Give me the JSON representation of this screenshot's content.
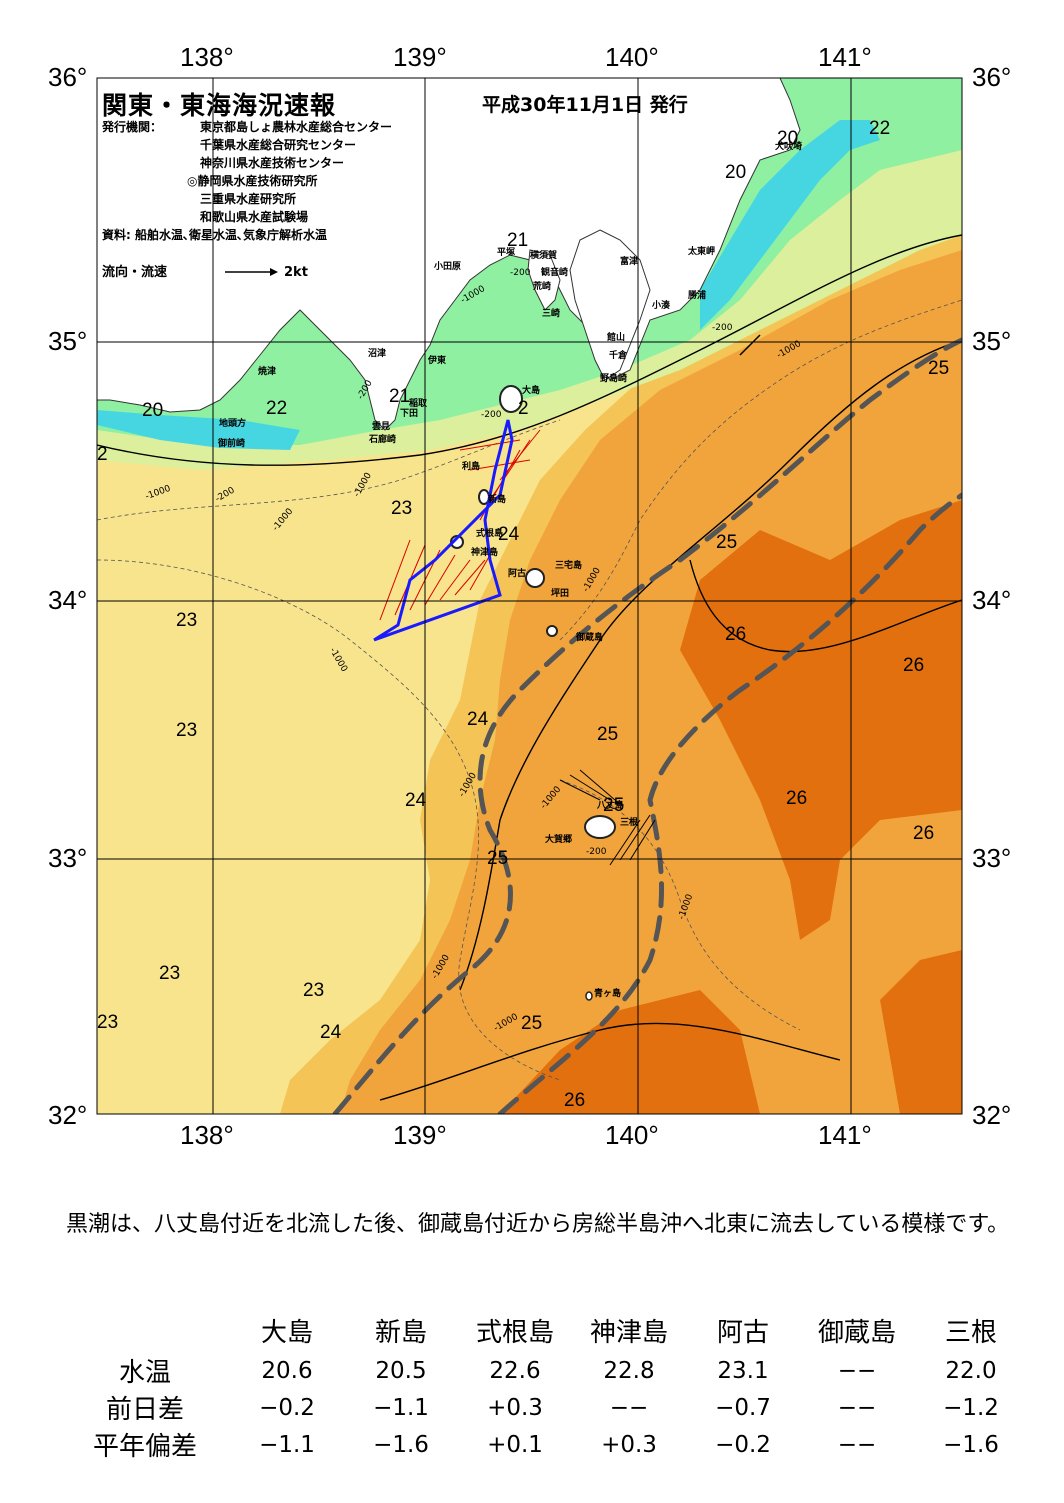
{
  "header": {
    "title": "関東・東海海況速報",
    "issue_date": "平成30年11月1日 発行",
    "issuer_label": "発行機関：",
    "issuers": [
      "東京都島しょ農林水産総合センター",
      "千葉県水産総合研究センター",
      "神奈川県水産技術センター",
      "◎静岡県水産技術研究所",
      "三重県水産研究所",
      "和歌山県水産試験場"
    ],
    "sources": "資料: 船舶水温､衛星水温､気象庁解析水温",
    "flow_legend_label": "流向・流速",
    "flow_legend_speed": "2kt"
  },
  "map": {
    "lon_labels": [
      "138°",
      "139°",
      "140°",
      "141°"
    ],
    "lat_labels": [
      "36°",
      "35°",
      "34°",
      "33°",
      "32°"
    ],
    "colors": {
      "sea_20": "#46d6e2",
      "sea_21": "#8ff0a2",
      "sea_22": "#dcef9c",
      "sea_23": "#f7e48c",
      "sea_24": "#f5c456",
      "sea_25": "#f1a43c",
      "sea_26": "#e2700f",
      "land": "#ffffff",
      "kuroshio_axis": "#555555",
      "ship_track": "#1a1aff",
      "ship_vectors": "#dd0000"
    },
    "place_names": [
      "犬吠埼",
      "富津",
      "太東岬",
      "勝浦",
      "小湊",
      "館山",
      "千倉",
      "野島崎",
      "横須賀",
      "観音崎",
      "平塚",
      "荒崎",
      "三崎",
      "小田原",
      "沼津",
      "伊東",
      "焼津",
      "地頭方",
      "御前崎",
      "稲取",
      "下田",
      "雲見",
      "石廊崎",
      "大島",
      "利島",
      "新島",
      "式根島",
      "神津島",
      "三宅島",
      "阿古",
      "坪田",
      "御蔵島",
      "八丈島",
      "三根",
      "大賀郷",
      "青ヶ島"
    ],
    "temperature_labels": [
      "20",
      "22",
      "20",
      "21",
      "20",
      "22",
      "21",
      "2",
      "2",
      "23",
      "24",
      "23",
      "25",
      "25",
      "26",
      "26",
      "23",
      "24",
      "25",
      "23",
      "24",
      "25",
      "26",
      "26",
      "25",
      "23",
      "23",
      "24",
      "25",
      "26",
      "3"
    ],
    "depth_labels": [
      "-200",
      "-1000"
    ]
  },
  "summary": "黒潮は、八丈島付近を北流した後、御蔵島付近から房総半島沖へ北東に流去している模様です。",
  "observations": {
    "columns": [
      "大島",
      "新島",
      "式根島",
      "神津島",
      "阿古",
      "御蔵島",
      "三根"
    ],
    "rows": [
      {
        "label": "水温",
        "values": [
          "20.6",
          "20.5",
          "22.6",
          "22.8",
          "23.1",
          "−−",
          "22.0"
        ]
      },
      {
        "label": "前日差",
        "values": [
          "−0.2",
          "−1.1",
          "+0.3",
          "−−",
          "−0.7",
          "−−",
          "−1.2"
        ]
      },
      {
        "label": "平年偏差",
        "values": [
          "−1.1",
          "−1.6",
          "+0.1",
          "+0.3",
          "−0.2",
          "−−",
          "−1.6"
        ]
      }
    ]
  }
}
